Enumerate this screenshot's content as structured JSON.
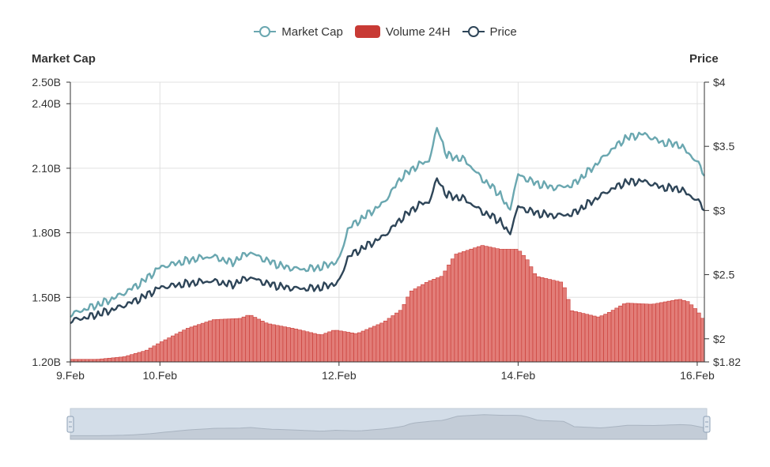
{
  "legend": {
    "market_cap": "Market Cap",
    "volume": "Volume 24H",
    "price": "Price"
  },
  "axis_titles": {
    "left": "Market Cap",
    "right": "Price"
  },
  "colors": {
    "market_cap": "#6aa7b0",
    "price": "#2e4558",
    "volume": "#c83a35",
    "volume_fill": "#e27d78",
    "grid": "#e0e0e0",
    "navigator": "#d3dde8"
  },
  "chart_data": {
    "type": "line",
    "x_ticks": [
      "9.Feb",
      "10.Feb",
      "12.Feb",
      "14.Feb",
      "16.Feb"
    ],
    "x_tick_days": [
      9.0,
      10.0,
      12.0,
      14.0,
      16.0
    ],
    "x_range": [
      9.0,
      16.08
    ],
    "left_axis": {
      "ticks": [
        "1.20B",
        "1.50B",
        "1.80B",
        "2.10B",
        "2.40B",
        "2.50B"
      ],
      "values": [
        1.2,
        1.5,
        1.8,
        2.1,
        2.4,
        2.5
      ],
      "range": [
        1.2,
        2.5
      ]
    },
    "right_axis": {
      "ticks": [
        "$1.82",
        "$2",
        "$2.5",
        "$3",
        "$3.5",
        "$4"
      ],
      "values": [
        1.82,
        2.0,
        2.5,
        3.0,
        3.5,
        4.0
      ],
      "range": [
        1.82,
        4.0
      ]
    },
    "series": [
      {
        "name": "Market Cap",
        "axis": "left",
        "x": [
          9.0,
          9.2,
          9.4,
          9.6,
          9.8,
          10.0,
          10.2,
          10.4,
          10.6,
          10.8,
          11.0,
          11.2,
          11.4,
          11.6,
          11.8,
          12.0,
          12.1,
          12.3,
          12.5,
          12.7,
          12.9,
          13.0,
          13.1,
          13.2,
          13.4,
          13.6,
          13.8,
          13.9,
          14.0,
          14.2,
          14.4,
          14.6,
          14.8,
          15.0,
          15.2,
          15.4,
          15.6,
          15.8,
          16.0,
          16.08
        ],
        "y": [
          1.42,
          1.45,
          1.48,
          1.52,
          1.57,
          1.64,
          1.66,
          1.68,
          1.69,
          1.66,
          1.71,
          1.67,
          1.64,
          1.63,
          1.64,
          1.67,
          1.82,
          1.88,
          1.94,
          2.06,
          2.12,
          2.13,
          2.29,
          2.16,
          2.14,
          2.05,
          1.98,
          1.9,
          2.07,
          2.03,
          2.01,
          2.02,
          2.09,
          2.17,
          2.24,
          2.26,
          2.22,
          2.21,
          2.13,
          2.07
        ]
      },
      {
        "name": "Price",
        "axis": "right",
        "x": [
          9.0,
          9.2,
          9.4,
          9.6,
          9.8,
          10.0,
          10.2,
          10.4,
          10.6,
          10.8,
          11.0,
          11.2,
          11.4,
          11.6,
          11.8,
          12.0,
          12.1,
          12.3,
          12.5,
          12.7,
          12.9,
          13.0,
          13.1,
          13.2,
          13.4,
          13.6,
          13.8,
          13.9,
          14.0,
          14.2,
          14.4,
          14.6,
          14.8,
          15.0,
          15.2,
          15.4,
          15.6,
          15.8,
          16.0,
          16.08
        ],
        "y": [
          2.14,
          2.17,
          2.21,
          2.26,
          2.32,
          2.4,
          2.42,
          2.44,
          2.45,
          2.42,
          2.48,
          2.43,
          2.4,
          2.39,
          2.4,
          2.44,
          2.64,
          2.72,
          2.8,
          2.94,
          3.05,
          3.06,
          3.25,
          3.12,
          3.09,
          2.99,
          2.92,
          2.81,
          3.03,
          2.98,
          2.96,
          2.97,
          3.06,
          3.15,
          3.22,
          3.23,
          3.18,
          3.17,
          3.08,
          3.01
        ]
      },
      {
        "name": "Volume 24H",
        "type": "bar",
        "x": [
          9.0,
          9.3,
          9.6,
          9.85,
          10.0,
          10.3,
          10.6,
          10.9,
          11.0,
          11.2,
          11.5,
          11.8,
          11.95,
          12.2,
          12.5,
          12.7,
          12.8,
          13.0,
          13.15,
          13.3,
          13.6,
          13.8,
          14.0,
          14.1,
          14.2,
          14.5,
          14.6,
          14.9,
          15.0,
          15.2,
          15.5,
          15.8,
          15.9,
          16.0,
          16.08
        ],
        "y": [
          0.02,
          0.02,
          0.04,
          0.09,
          0.15,
          0.26,
          0.33,
          0.34,
          0.37,
          0.3,
          0.26,
          0.21,
          0.25,
          0.22,
          0.31,
          0.41,
          0.55,
          0.63,
          0.67,
          0.84,
          0.91,
          0.88,
          0.88,
          0.8,
          0.67,
          0.62,
          0.4,
          0.35,
          0.38,
          0.46,
          0.45,
          0.49,
          0.47,
          0.4,
          0.32
        ]
      }
    ]
  }
}
